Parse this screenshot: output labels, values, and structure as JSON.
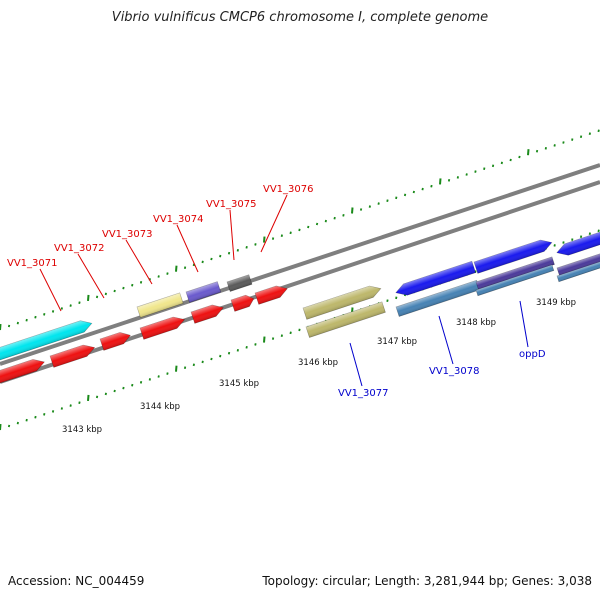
{
  "header": {
    "title": "Vibrio vulnificus CMCP6 chromosome I, complete genome"
  },
  "footer": {
    "accession": "Accession: NC_004459",
    "summary": "Topology: circular; Length: 3,281,944 bp; Genes: 3,038"
  },
  "scale": {
    "unit": "kbp",
    "ticks": [
      "3143 kbp",
      "3144 kbp",
      "3145 kbp",
      "3146 kbp",
      "3147 kbp",
      "3148 kbp",
      "3149 kbp"
    ]
  },
  "colors": {
    "backbone": "#7f7f7f",
    "tick": "#1a8a1a",
    "label_red": "#dd0000",
    "label_blue": "#0000cc"
  },
  "genes": [
    {
      "name": "VV1_3071",
      "color": "#00e5ee"
    },
    {
      "name": "VV1_3072",
      "color": "#ee1111"
    },
    {
      "name": "VV1_3073",
      "color": "#f0e68c"
    },
    {
      "name": "VV1_3074",
      "color": "#6a5acd"
    },
    {
      "name": "VV1_3075",
      "color": "#5a5a5a"
    },
    {
      "name": "VV1_3076",
      "color": "#ee1111"
    },
    {
      "name": "VV1_3077",
      "color": "#bdb76b"
    },
    {
      "name": "VV1_3078",
      "color": "#4682b4"
    },
    {
      "name": "oppD",
      "color": "#1a1aee"
    }
  ]
}
